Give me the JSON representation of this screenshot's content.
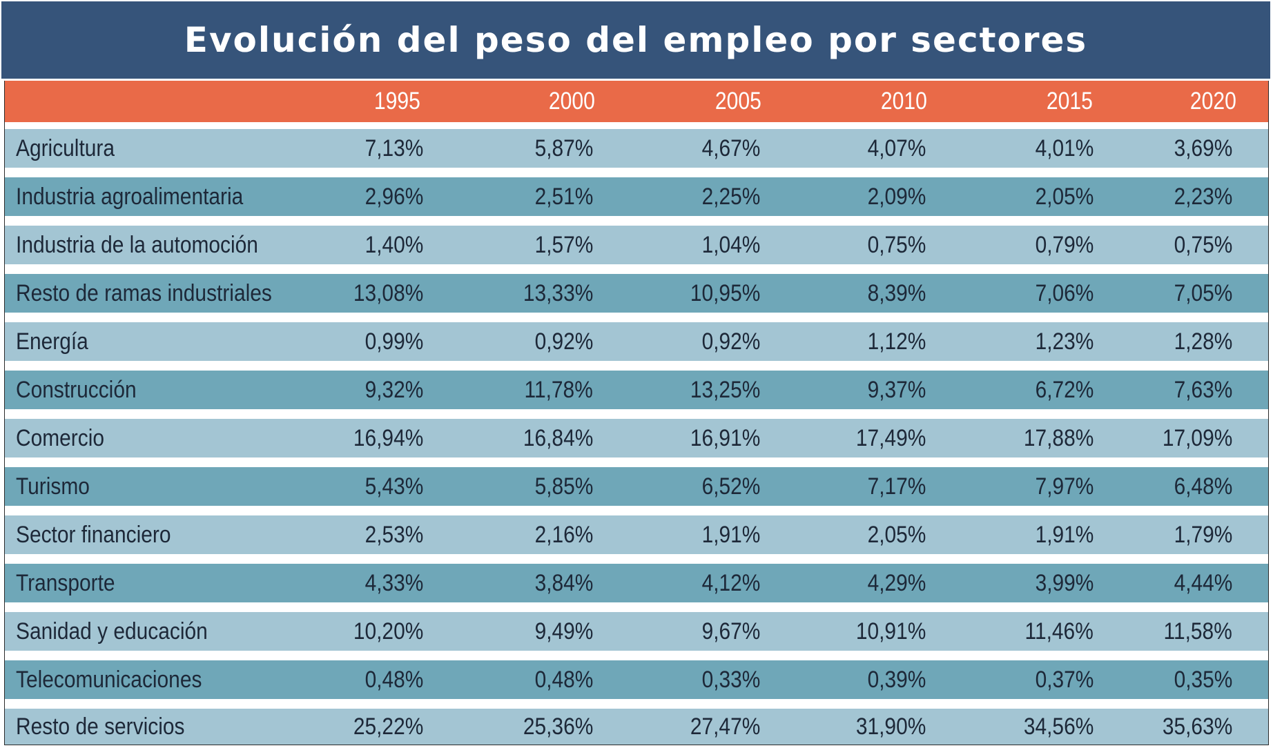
{
  "title": "Evolución del peso del empleo por sectores",
  "colors": {
    "title_bg": "#36547a",
    "header_bg": "#e96a48",
    "row_light": "#a3c5d3",
    "row_dark": "#6fa7b8"
  },
  "chart_data": {
    "type": "table",
    "title": "Evolución del peso del empleo por sectores",
    "columns": [
      "1995",
      "2000",
      "2005",
      "2010",
      "2015",
      "2020"
    ],
    "rows": [
      {
        "label": "Agricultura",
        "values": [
          "7,13%",
          "5,87%",
          "4,67%",
          "4,07%",
          "4,01%",
          "3,69%"
        ]
      },
      {
        "label": "Industria agroalimentaria",
        "values": [
          "2,96%",
          "2,51%",
          "2,25%",
          "2,09%",
          "2,05%",
          "2,23%"
        ]
      },
      {
        "label": "Industria de la automoción",
        "values": [
          "1,40%",
          "1,57%",
          "1,04%",
          "0,75%",
          "0,79%",
          "0,75%"
        ]
      },
      {
        "label": "Resto de ramas industriales",
        "values": [
          "13,08%",
          "13,33%",
          "10,95%",
          "8,39%",
          "7,06%",
          "7,05%"
        ]
      },
      {
        "label": "Energía",
        "values": [
          "0,99%",
          "0,92%",
          "0,92%",
          "1,12%",
          "1,23%",
          "1,28%"
        ]
      },
      {
        "label": "Construcción",
        "values": [
          "9,32%",
          "11,78%",
          "13,25%",
          "9,37%",
          "6,72%",
          "7,63%"
        ]
      },
      {
        "label": "Comercio",
        "values": [
          "16,94%",
          "16,84%",
          "16,91%",
          "17,49%",
          "17,88%",
          "17,09%"
        ]
      },
      {
        "label": "Turismo",
        "values": [
          "5,43%",
          "5,85%",
          "6,52%",
          "7,17%",
          "7,97%",
          "6,48%"
        ]
      },
      {
        "label": "Sector financiero",
        "values": [
          "2,53%",
          "2,16%",
          "1,91%",
          "2,05%",
          "1,91%",
          "1,79%"
        ]
      },
      {
        "label": "Transporte",
        "values": [
          "4,33%",
          "3,84%",
          "4,12%",
          "4,29%",
          "3,99%",
          "4,44%"
        ]
      },
      {
        "label": "Sanidad y educación",
        "values": [
          "10,20%",
          "9,49%",
          "9,67%",
          "10,91%",
          "11,46%",
          "11,58%"
        ]
      },
      {
        "label": "Telecomunicaciones",
        "values": [
          "0,48%",
          "0,48%",
          "0,33%",
          "0,39%",
          "0,37%",
          "0,35%"
        ]
      },
      {
        "label": "Resto de servicios",
        "values": [
          "25,22%",
          "25,36%",
          "27,47%",
          "31,90%",
          "34,56%",
          "35,63%"
        ]
      }
    ]
  }
}
